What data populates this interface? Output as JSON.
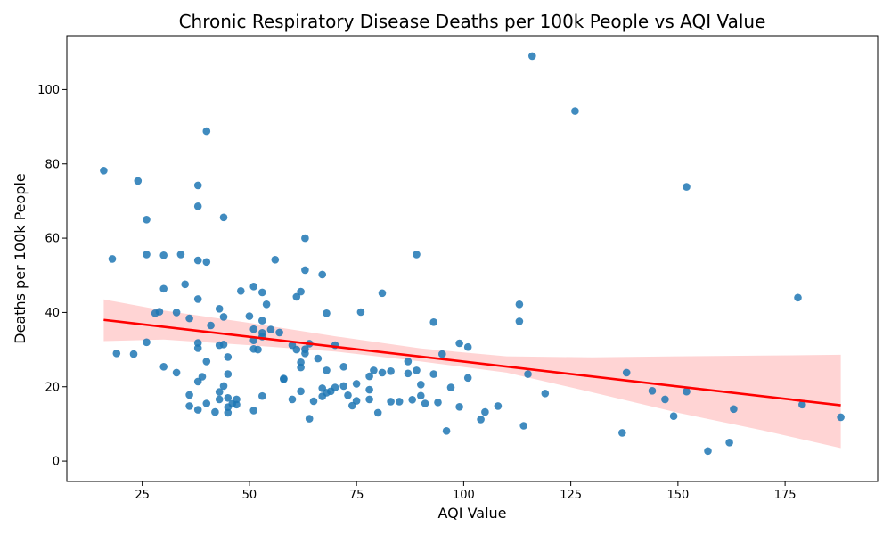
{
  "chart_data": {
    "type": "scatter",
    "title": "Chronic Respiratory Disease Deaths per 100k People vs AQI Value",
    "xlabel": "AQI Value",
    "ylabel": "Deaths per 100k People",
    "xlim": [
      7.4,
      196.6
    ],
    "ylim": [
      -5.5,
      114.5
    ],
    "xticks": [
      25,
      50,
      75,
      100,
      125,
      150,
      175
    ],
    "yticks": [
      0,
      20,
      40,
      60,
      80,
      100
    ],
    "xtick_labels": [
      "25",
      "50",
      "75",
      "100",
      "125",
      "150",
      "175"
    ],
    "ytick_labels": [
      "0",
      "20",
      "40",
      "60",
      "80",
      "100"
    ],
    "grid": false,
    "legend": "none",
    "colors": {
      "point": "#1f77b4",
      "regression_line": "#ff0000",
      "confidence_band": "#ffcccc"
    },
    "regression": {
      "x": [
        16,
        188
      ],
      "y": [
        38,
        15
      ]
    },
    "confidence_band": {
      "x": [
        16,
        30,
        50,
        70,
        90,
        110,
        130,
        150,
        170,
        188
      ],
      "upper": [
        43.5,
        40.5,
        37.2,
        33.6,
        30.3,
        28.2,
        27.9,
        28.2,
        28.4,
        28.6
      ],
      "lower": [
        32.3,
        32.7,
        31.2,
        29.5,
        26.8,
        23.8,
        18.5,
        13.0,
        8.2,
        3.5
      ]
    },
    "points": [
      [
        116,
        109
      ],
      [
        126,
        94.2
      ],
      [
        40,
        88.8
      ],
      [
        16,
        78.2
      ],
      [
        24,
        75.4
      ],
      [
        38,
        74.2
      ],
      [
        152,
        73.8
      ],
      [
        38,
        68.6
      ],
      [
        26,
        65
      ],
      [
        44,
        65.6
      ],
      [
        63,
        60
      ],
      [
        18,
        54.4
      ],
      [
        26,
        55.6
      ],
      [
        30,
        55.4
      ],
      [
        34,
        55.6
      ],
      [
        38,
        54
      ],
      [
        40,
        53.6
      ],
      [
        56,
        54.2
      ],
      [
        89,
        55.6
      ],
      [
        63,
        51.4
      ],
      [
        67,
        50.2
      ],
      [
        35,
        47.6
      ],
      [
        30,
        46.4
      ],
      [
        48,
        45.8
      ],
      [
        51,
        47
      ],
      [
        53,
        45.4
      ],
      [
        62,
        45.6
      ],
      [
        81,
        45.2
      ],
      [
        61,
        44.2
      ],
      [
        38,
        43.6
      ],
      [
        54,
        42.2
      ],
      [
        113,
        42.2
      ],
      [
        178,
        44
      ],
      [
        43,
        41
      ],
      [
        28,
        39.8
      ],
      [
        29,
        40.2
      ],
      [
        33,
        40
      ],
      [
        36,
        38.4
      ],
      [
        44,
        38.8
      ],
      [
        50,
        39
      ],
      [
        53,
        37.8
      ],
      [
        68,
        39.8
      ],
      [
        76,
        40.1
      ],
      [
        93,
        37.4
      ],
      [
        113,
        37.6
      ],
      [
        41,
        36.5
      ],
      [
        51,
        35.5
      ],
      [
        55,
        35.4
      ],
      [
        57,
        34.6
      ],
      [
        53,
        34.5
      ],
      [
        53,
        33.5
      ],
      [
        26,
        32
      ],
      [
        38,
        31.8
      ],
      [
        43,
        31.2
      ],
      [
        44,
        31.4
      ],
      [
        51,
        32.5
      ],
      [
        51,
        30.2
      ],
      [
        52,
        30
      ],
      [
        60,
        31.2
      ],
      [
        61,
        30
      ],
      [
        63,
        30.1
      ],
      [
        63,
        29
      ],
      [
        64,
        31.6
      ],
      [
        70,
        31.2
      ],
      [
        99,
        31.7
      ],
      [
        101,
        30.7
      ],
      [
        19,
        29
      ],
      [
        23,
        28.8
      ],
      [
        38,
        30.4
      ],
      [
        45,
        28
      ],
      [
        40,
        26.8
      ],
      [
        66,
        27.6
      ],
      [
        62,
        26.6
      ],
      [
        87,
        26.8
      ],
      [
        95,
        28.8
      ],
      [
        30,
        25.4
      ],
      [
        33,
        23.8
      ],
      [
        39,
        22.7
      ],
      [
        45,
        23.4
      ],
      [
        62,
        25.2
      ],
      [
        68,
        24.4
      ],
      [
        72,
        25.4
      ],
      [
        78,
        22.8
      ],
      [
        79,
        24.4
      ],
      [
        81,
        23.8
      ],
      [
        83,
        24.2
      ],
      [
        87,
        23.6
      ],
      [
        89,
        24.4
      ],
      [
        93,
        23.4
      ],
      [
        101,
        22.4
      ],
      [
        115,
        23.4
      ],
      [
        138,
        23.8
      ],
      [
        38,
        21.4
      ],
      [
        44,
        20.2
      ],
      [
        58,
        22
      ],
      [
        58,
        22.2
      ],
      [
        62,
        18.8
      ],
      [
        67,
        19.6
      ],
      [
        70,
        19.8
      ],
      [
        72,
        20.2
      ],
      [
        75,
        20.8
      ],
      [
        78,
        19.2
      ],
      [
        90,
        20.6
      ],
      [
        97,
        19.8
      ],
      [
        36,
        17.8
      ],
      [
        43,
        18.6
      ],
      [
        43,
        16.6
      ],
      [
        45,
        17
      ],
      [
        47,
        16.6
      ],
      [
        53,
        17.5
      ],
      [
        60,
        16.6
      ],
      [
        65,
        16.1
      ],
      [
        67,
        17.4
      ],
      [
        68,
        18.4
      ],
      [
        69,
        18.8
      ],
      [
        73,
        17.7
      ],
      [
        75,
        16.2
      ],
      [
        78,
        16.6
      ],
      [
        83,
        16
      ],
      [
        85,
        16
      ],
      [
        88,
        16.5
      ],
      [
        90,
        17.6
      ],
      [
        91,
        15.5
      ],
      [
        94,
        15.8
      ],
      [
        119,
        18.2
      ],
      [
        144,
        18.9
      ],
      [
        147,
        16.6
      ],
      [
        152,
        18.7
      ],
      [
        36,
        14.8
      ],
      [
        38,
        13.8
      ],
      [
        40,
        15.5
      ],
      [
        42,
        13.2
      ],
      [
        45,
        14.5
      ],
      [
        45,
        13
      ],
      [
        46,
        15.4
      ],
      [
        47,
        15.2
      ],
      [
        51,
        13.6
      ],
      [
        64,
        11.4
      ],
      [
        74,
        14.9
      ],
      [
        80,
        13
      ],
      [
        99,
        14.6
      ],
      [
        104,
        11.2
      ],
      [
        105,
        13.2
      ],
      [
        108,
        14.8
      ],
      [
        149,
        12.1
      ],
      [
        163,
        14
      ],
      [
        179,
        15.2
      ],
      [
        188,
        11.8
      ],
      [
        96,
        8.1
      ],
      [
        114,
        9.5
      ],
      [
        137,
        7.6
      ],
      [
        157,
        2.7
      ],
      [
        162,
        5
      ]
    ]
  }
}
